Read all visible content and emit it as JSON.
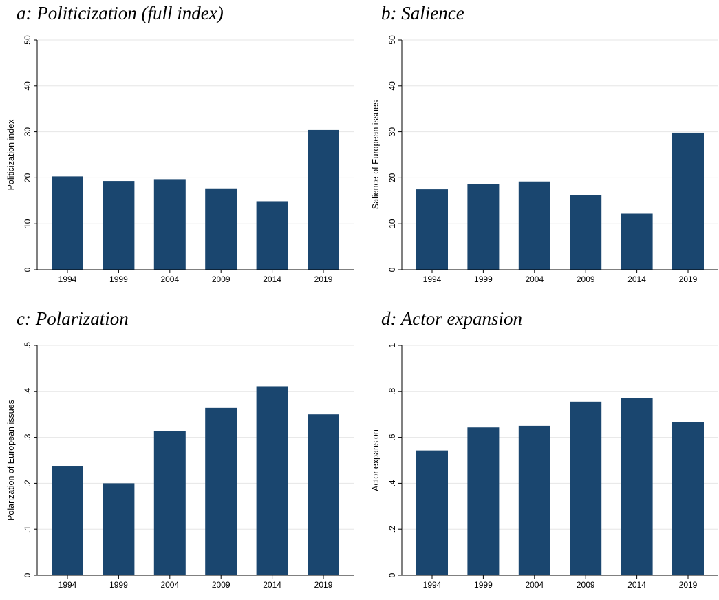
{
  "colors": {
    "bar": "#1a466f",
    "grid": "#e6e6e6",
    "axis": "#000000"
  },
  "chart_data": [
    {
      "panel_title": "a: Politicization (full index)",
      "type": "bar",
      "categories": [
        "1994",
        "1999",
        "2004",
        "2009",
        "2014",
        "2019"
      ],
      "values": [
        20.3,
        19.3,
        19.7,
        17.7,
        14.9,
        30.4
      ],
      "ylabel": "Politicization index",
      "ylim": [
        0,
        50
      ],
      "yticks": [
        0,
        10,
        20,
        30,
        40,
        50
      ],
      "ytick_labels": [
        "0",
        "10",
        "20",
        "30",
        "40",
        "50"
      ],
      "grid": true
    },
    {
      "panel_title": "b: Salience",
      "type": "bar",
      "categories": [
        "1994",
        "1999",
        "2004",
        "2009",
        "2014",
        "2019"
      ],
      "values": [
        17.5,
        18.7,
        19.2,
        16.3,
        12.2,
        29.8
      ],
      "ylabel": "Salience of European issues",
      "ylim": [
        0,
        50
      ],
      "yticks": [
        0,
        10,
        20,
        30,
        40,
        50
      ],
      "ytick_labels": [
        "0",
        "10",
        "20",
        "30",
        "40",
        "50"
      ],
      "grid": true
    },
    {
      "panel_title": "c: Polarization",
      "type": "bar",
      "categories": [
        "1994",
        "1999",
        "2004",
        "2009",
        "2014",
        "2019"
      ],
      "values": [
        0.238,
        0.2,
        0.313,
        0.364,
        0.411,
        0.35
      ],
      "ylabel": "Polarization of European issues",
      "ylim": [
        0,
        0.5
      ],
      "yticks": [
        0,
        0.1,
        0.2,
        0.3,
        0.4,
        0.5
      ],
      "ytick_labels": [
        "0",
        ".1",
        ".2",
        ".3",
        ".4",
        ".5"
      ],
      "grid": true
    },
    {
      "panel_title": "d: Actor expansion",
      "type": "bar",
      "categories": [
        "1994",
        "1999",
        "2004",
        "2009",
        "2014",
        "2019"
      ],
      "values": [
        0.543,
        0.643,
        0.65,
        0.755,
        0.771,
        0.667
      ],
      "ylabel": "Actor expansion",
      "ylim": [
        0,
        1
      ],
      "yticks": [
        0,
        0.2,
        0.4,
        0.6,
        0.8,
        1
      ],
      "ytick_labels": [
        "0",
        ".2",
        ".4",
        ".6",
        ".8",
        "1"
      ],
      "grid": true
    }
  ]
}
